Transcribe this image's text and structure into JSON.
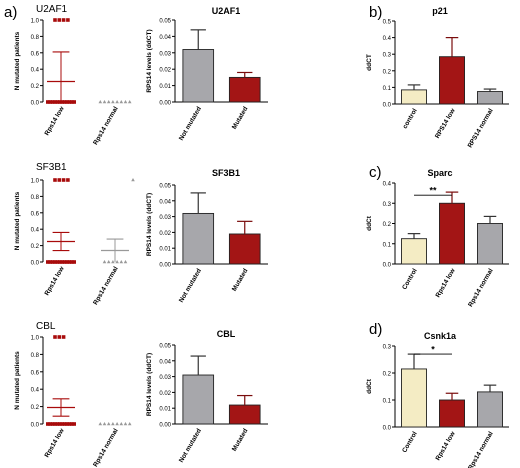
{
  "panel_letters": {
    "a": "a)",
    "b": "b)",
    "c": "c)",
    "d": "d)"
  },
  "colors": {
    "red": "#a31515",
    "gray": "#a7a7ab",
    "cream": "#f4ecc4",
    "red_mark": "#a80b0b",
    "gray_mark": "#999999"
  },
  "chart_data": [
    {
      "id": "u2af1_scatter",
      "type": "scatter",
      "title": "U2AF1",
      "ylabel": "N mutated patients",
      "ylim": [
        0,
        1.0
      ],
      "yticks": [
        "0.0",
        "0.2",
        "0.4",
        "0.6",
        "0.8",
        "1.0"
      ],
      "categories": [
        "Rps14 low",
        "Rps14 normal"
      ],
      "series": [
        {
          "category": "Rps14 low",
          "n_at_1": 4,
          "n_at_0": 12,
          "mean": 0.25,
          "sd": 0.36
        },
        {
          "category": "Rps14 normal",
          "n_at_1": 0,
          "n_at_0": 8,
          "mean": 0.0,
          "sd": 0.0
        }
      ]
    },
    {
      "id": "u2af1_bar",
      "type": "bar",
      "title": "U2AF1",
      "ylabel": "RPS14 levels (ddCT)",
      "ylim": [
        0,
        0.05
      ],
      "yticks": [
        "0.00",
        "0.01",
        "0.02",
        "0.03",
        "0.04",
        "0.05"
      ],
      "categories": [
        "Not mutated",
        "Mutated"
      ],
      "values": [
        0.032,
        0.015
      ],
      "errors": [
        0.012,
        0.003
      ]
    },
    {
      "id": "p21_bar",
      "type": "bar",
      "title": "p21",
      "ylabel": "ddCT",
      "ylim": [
        0,
        0.5
      ],
      "yticks": [
        "0.0",
        "0.1",
        "0.2",
        "0.3",
        "0.4",
        "0.5"
      ],
      "categories": [
        "control",
        "RPS14 low",
        "RPS14 normal"
      ],
      "values": [
        0.085,
        0.285,
        0.075
      ],
      "errors": [
        0.03,
        0.115,
        0.015
      ]
    },
    {
      "id": "sf3b1_scatter",
      "type": "scatter",
      "title": "SF3B1",
      "ylabel": "N mutated patients",
      "ylim": [
        0,
        1.0
      ],
      "yticks": [
        "0.0",
        "0.2",
        "0.4",
        "0.6",
        "0.8",
        "1.0"
      ],
      "categories": [
        "Rps14 low",
        "Rps14 normal"
      ],
      "series": [
        {
          "category": "Rps14 low",
          "n_at_1": 4,
          "n_at_0": 12,
          "mean": 0.25,
          "sd": 0.11
        },
        {
          "category": "Rps14 normal",
          "n_at_1": 1,
          "n_at_0": 6,
          "mean": 0.14,
          "sd": 0.14
        }
      ]
    },
    {
      "id": "sf3b1_bar",
      "type": "bar",
      "title": "SF3B1",
      "ylabel": "RPS14 levels (ddCT)",
      "ylim": [
        0,
        0.05
      ],
      "yticks": [
        "0.00",
        "0.01",
        "0.02",
        "0.03",
        "0.04",
        "0.05"
      ],
      "categories": [
        "Not mutated",
        "Mutated"
      ],
      "values": [
        0.032,
        0.019
      ],
      "errors": [
        0.013,
        0.008
      ]
    },
    {
      "id": "sparc_bar",
      "type": "bar",
      "title": "Sparc",
      "ylabel": "ddCt",
      "ylim": [
        0,
        0.4
      ],
      "yticks": [
        "0.0",
        "0.1",
        "0.2",
        "0.3",
        "0.4"
      ],
      "categories": [
        "Control",
        "Rps14 low",
        "Rps14 normal"
      ],
      "values": [
        0.125,
        0.3,
        0.2
      ],
      "errors": [
        0.025,
        0.055,
        0.035
      ],
      "annotation": {
        "text": "**",
        "from": 0,
        "to": 1,
        "level": 0.34
      }
    },
    {
      "id": "cbl_scatter",
      "type": "scatter",
      "title": "CBL",
      "ylabel": "N mutated patients",
      "ylim": [
        0,
        1.0
      ],
      "yticks": [
        "0.0",
        "0.2",
        "0.4",
        "0.6",
        "0.8",
        "1.0"
      ],
      "categories": [
        "Rps14 low",
        "Rps14 normal"
      ],
      "series": [
        {
          "category": "Rps14 low",
          "n_at_1": 3,
          "n_at_0": 12,
          "mean": 0.19,
          "sd": 0.1
        },
        {
          "category": "Rps14 normal",
          "n_at_1": 0,
          "n_at_0": 8,
          "mean": 0.0,
          "sd": 0.0
        }
      ]
    },
    {
      "id": "cbl_bar",
      "type": "bar",
      "title": "CBL",
      "ylabel": "RPS14 levels (ddCT)",
      "ylim": [
        0,
        0.05
      ],
      "yticks": [
        "0.00",
        "0.01",
        "0.02",
        "0.03",
        "0.04",
        "0.05"
      ],
      "categories": [
        "Not mutated",
        "Mutated"
      ],
      "values": [
        0.031,
        0.012
      ],
      "errors": [
        0.012,
        0.006
      ]
    },
    {
      "id": "csnk1a_bar",
      "type": "bar",
      "title": "Csnk1a",
      "ylabel": "ddCt",
      "ylim": [
        0,
        0.3
      ],
      "yticks": [
        "0.0",
        "0.1",
        "0.2",
        "0.3"
      ],
      "categories": [
        "Control",
        "Rps14 low",
        "Rps14 normal"
      ],
      "values": [
        0.215,
        0.1,
        0.13
      ],
      "errors": [
        0.055,
        0.025,
        0.025
      ],
      "annotation": {
        "text": "*",
        "from": 0,
        "to": 1,
        "level": 0.27
      }
    }
  ]
}
